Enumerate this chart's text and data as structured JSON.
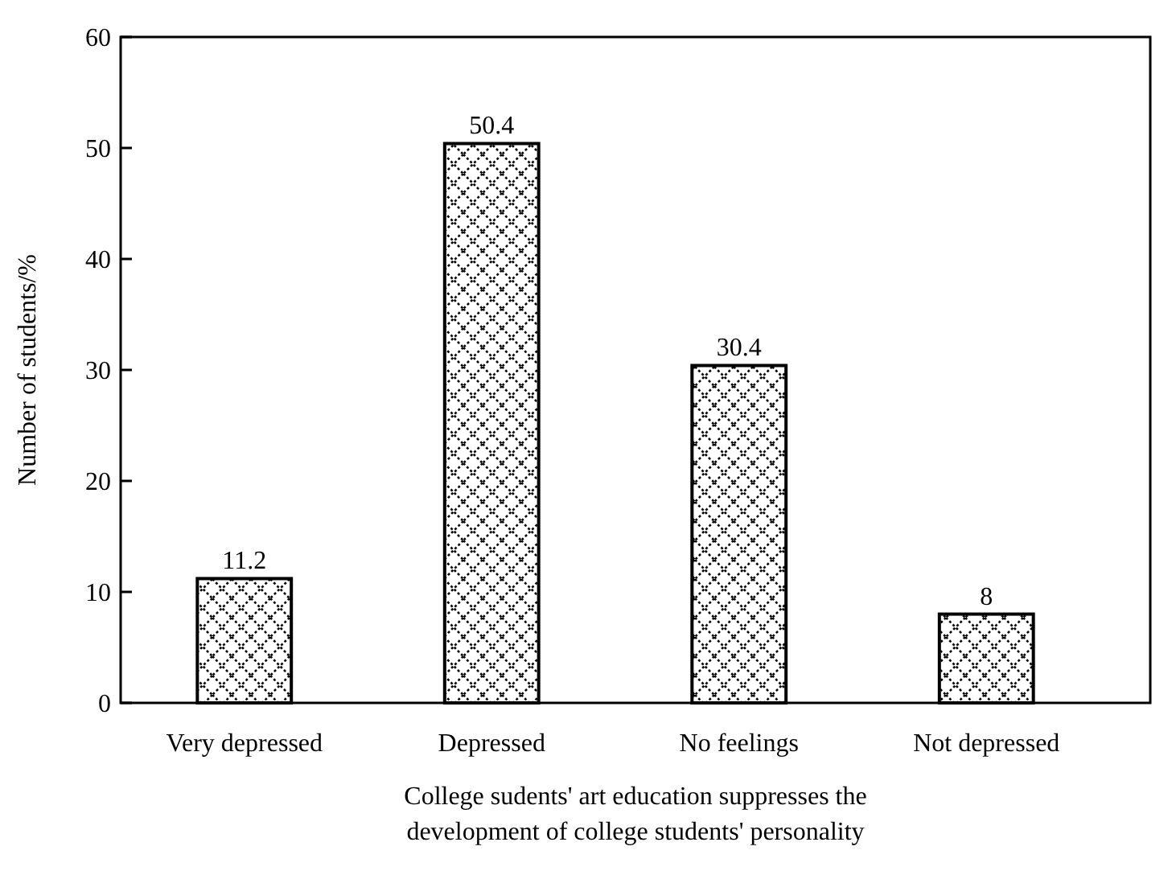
{
  "chart_data": {
    "type": "bar",
    "xlabel": "College sudents' art education suppresses the development of college students' personality",
    "ylabel": "Number of students/%",
    "categories": [
      "Very depressed",
      "Depressed",
      "No feelings",
      "Not depressed"
    ],
    "values": [
      11.2,
      50.4,
      30.4,
      8
    ],
    "color": "#000000",
    "ylim": [
      0,
      60
    ],
    "yticks": [
      0,
      10,
      20,
      30,
      40,
      50,
      60
    ],
    "data_labels": true
  }
}
